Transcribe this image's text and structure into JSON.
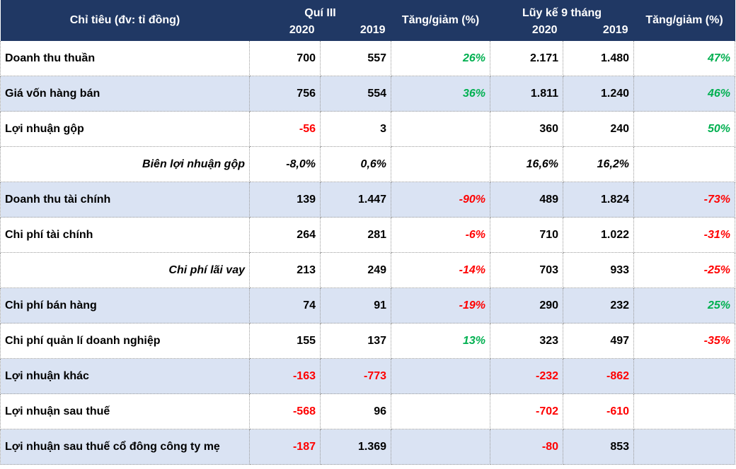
{
  "header": {
    "label": "Chỉ tiêu (đv: tỉ đồng)",
    "q3": "Quí III",
    "ytd": "Lũy kế 9 tháng",
    "pct": "Tăng/giảm (%)",
    "y2020": "2020",
    "y2019": "2019"
  },
  "rows": {
    "r0": {
      "label": "Doanh thu thuần",
      "q20": "700",
      "q19": "557",
      "qp": "26%",
      "y20": "2.171",
      "y19": "1.480",
      "yp": "47%"
    },
    "r1": {
      "label": "Giá vốn hàng bán",
      "q20": "756",
      "q19": "554",
      "qp": "36%",
      "y20": "1.811",
      "y19": "1.240",
      "yp": "46%"
    },
    "r2": {
      "label": "Lợi nhuận gộp",
      "q20": "-56",
      "q19": "3",
      "qp": "",
      "y20": "360",
      "y19": "240",
      "yp": "50%"
    },
    "r3": {
      "label": "Biên lợi nhuận gộp",
      "q20": "-8,0%",
      "q19": "0,6%",
      "qp": "",
      "y20": "16,6%",
      "y19": "16,2%",
      "yp": ""
    },
    "r4": {
      "label": "Doanh thu tài chính",
      "q20": "139",
      "q19": "1.447",
      "qp": "-90%",
      "y20": "489",
      "y19": "1.824",
      "yp": "-73%"
    },
    "r5": {
      "label": "Chi phí tài chính",
      "q20": "264",
      "q19": "281",
      "qp": "-6%",
      "y20": "710",
      "y19": "1.022",
      "yp": "-31%"
    },
    "r6": {
      "label": "Chi phí lãi vay",
      "q20": "213",
      "q19": "249",
      "qp": "-14%",
      "y20": "703",
      "y19": "933",
      "yp": "-25%"
    },
    "r7": {
      "label": "Chi phí bán hàng",
      "q20": "74",
      "q19": "91",
      "qp": "-19%",
      "y20": "290",
      "y19": "232",
      "yp": "25%"
    },
    "r8": {
      "label": "Chi phí quản lí doanh nghiệp",
      "q20": "155",
      "q19": "137",
      "qp": "13%",
      "y20": "323",
      "y19": "497",
      "yp": "-35%"
    },
    "r9": {
      "label": "Lợi nhuận khác",
      "q20": "-163",
      "q19": "-773",
      "qp": "",
      "y20": "-232",
      "y19": "-862",
      "yp": ""
    },
    "r10": {
      "label": "Lợi nhuận sau thuế",
      "q20": "-568",
      "q19": "96",
      "qp": "",
      "y20": "-702",
      "y19": "-610",
      "yp": ""
    },
    "r11": {
      "label": "Lợi nhuận sau thuế cổ đông công ty mẹ",
      "q20": "-187",
      "q19": "1.369",
      "qp": "",
      "y20": "-80",
      "y19": "853",
      "yp": ""
    }
  },
  "colors": {
    "header_bg": "#203864",
    "row_shade": "#dae3f3",
    "positive": "#00b050",
    "negative": "#ff0000"
  }
}
